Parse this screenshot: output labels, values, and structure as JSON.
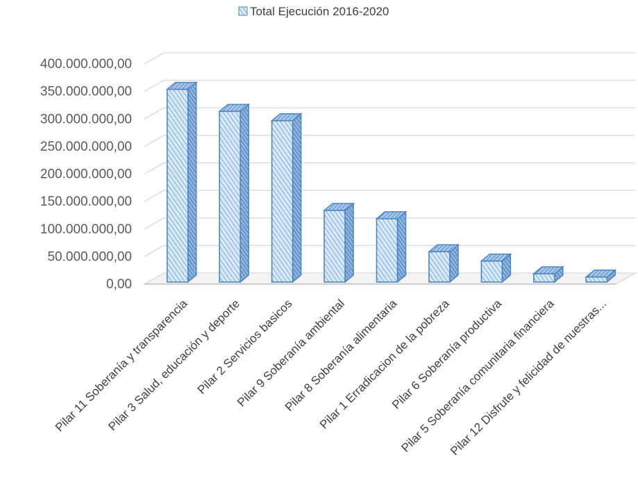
{
  "chart_data": {
    "type": "bar",
    "style": "3d-column",
    "legend": {
      "position": "top",
      "entries": [
        "Total Ejecución 2016-2020"
      ]
    },
    "series": [
      {
        "name": "Total Ejecución 2016-2020",
        "values": [
          350000000,
          310000000,
          293000000,
          130000000,
          115000000,
          55000000,
          38000000,
          15000000,
          9000000
        ]
      }
    ],
    "categories": [
      "Pilar 11 Soberanía y transparencia",
      "Pilar 3 Salud, educación y deporte",
      "Pilar 2 Servicios basicos",
      "Pilar 9 Soberanía ambiental",
      "Pilar 8 Soberanía alimentaria",
      "Pilar 1 Erradicacion de la pobreza",
      "Pilar 6 Soberanía productiva",
      "Pilar 5 Soberanía comunitaria financiera",
      "Pilar 12 Disfrute y felicidad de nuestras..."
    ],
    "ylim": [
      0,
      400000000
    ],
    "y_ticks": [
      0,
      50000000,
      100000000,
      150000000,
      200000000,
      250000000,
      300000000,
      350000000,
      400000000
    ],
    "y_tick_labels": [
      "0,00",
      "50.000.000,00",
      "100.000.000,00",
      "150.000.000,00",
      "200.000.000,00",
      "250.000.000,00",
      "300.000.000,00",
      "350.000.000,00",
      "400.000.000,00"
    ],
    "grid": true,
    "colors": {
      "bar_fill": "#dbe9f7",
      "bar_hatch": "#5b9bd5",
      "bar_edge": "#4a86c5",
      "grid": "#d9d9d9",
      "floor": "#d9d9d9"
    }
  }
}
